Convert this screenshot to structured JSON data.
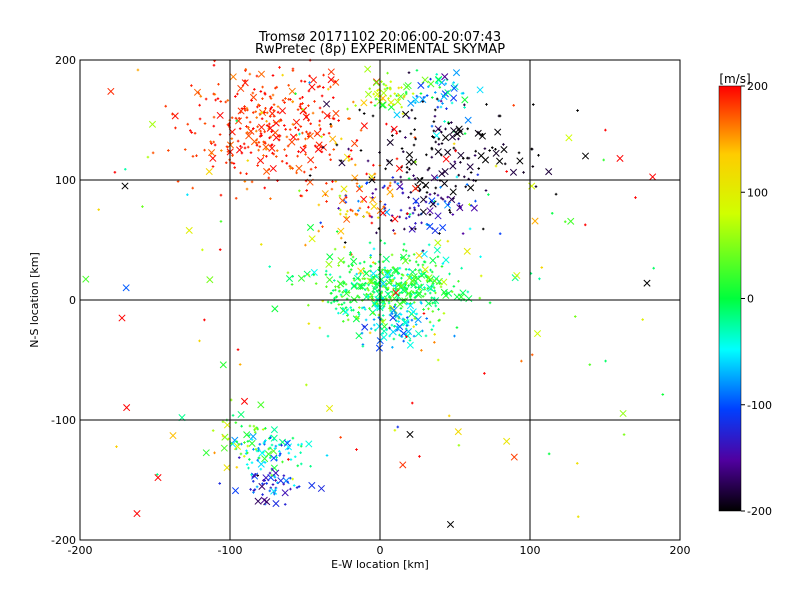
{
  "chart_data": {
    "type": "scatter",
    "title": "Tromsø 20171102 20:06:00-20:07:43",
    "subtitle": "RwPretec (8p) EXPERIMENTAL SKYMAP",
    "xlabel": "E-W location [km]",
    "ylabel": "N-S location [km]",
    "xlim": [
      -200,
      200
    ],
    "ylim": [
      -200,
      200
    ],
    "x_ticks": [
      "-200",
      "-100",
      "0",
      "100",
      "200"
    ],
    "y_ticks": [
      "-200",
      "-100",
      "0",
      "100",
      "200"
    ],
    "grid": true,
    "markers": [
      "cross",
      "x"
    ],
    "colorbar": {
      "label": "[m/s]",
      "range": [
        -200,
        200
      ],
      "ticks": [
        "200",
        "100",
        "0",
        "-100",
        "-200"
      ],
      "colormap": "rainbow (black - purple - blue - cyan - green - yellow - red)"
    },
    "clusters": [
      {
        "x": -75,
        "y": 145,
        "sx": 30,
        "sy": 25,
        "n": 340,
        "v": 185,
        "sv": 15
      },
      {
        "x": 5,
        "y": 172,
        "sx": 10,
        "sy": 8,
        "n": 50,
        "v": 70,
        "sv": 40
      },
      {
        "x": 38,
        "y": 172,
        "sx": 14,
        "sy": 12,
        "n": 60,
        "v": -60,
        "sv": 50
      },
      {
        "x": 45,
        "y": 120,
        "sx": 35,
        "sy": 20,
        "n": 140,
        "v": -195,
        "sv": 15
      },
      {
        "x": 25,
        "y": 80,
        "sx": 22,
        "sy": 15,
        "n": 110,
        "v": -150,
        "sv": 50
      },
      {
        "x": -15,
        "y": 85,
        "sx": 15,
        "sy": 25,
        "n": 70,
        "v": 160,
        "sv": 40
      },
      {
        "x": 5,
        "y": 10,
        "sx": 25,
        "sy": 15,
        "n": 460,
        "v": 5,
        "sv": 30
      },
      {
        "x": 10,
        "y": -20,
        "sx": 12,
        "sy": 10,
        "n": 70,
        "v": -70,
        "sv": 40
      },
      {
        "x": -75,
        "y": -125,
        "sx": 12,
        "sy": 8,
        "n": 75,
        "v": -40,
        "sv": 40
      },
      {
        "x": -70,
        "y": -155,
        "sx": 12,
        "sy": 8,
        "n": 55,
        "v": -120,
        "sv": 30
      },
      {
        "x": -90,
        "y": -115,
        "sx": 10,
        "sy": 15,
        "n": 40,
        "v": 40,
        "sv": 40
      },
      {
        "x": 0,
        "y": 40,
        "sx": 110,
        "sy": 110,
        "n": 160,
        "v": 120,
        "sv": 100
      }
    ],
    "notable_points": [
      {
        "x": -170,
        "y": 95,
        "v": -200
      },
      {
        "x": 178,
        "y": 14,
        "v": -200
      },
      {
        "x": -172,
        "y": -15,
        "v": 200
      },
      {
        "x": 160,
        "y": 118,
        "v": 200
      },
      {
        "x": 137,
        "y": 120,
        "v": -200
      },
      {
        "x": -132,
        "y": -98,
        "v": -20
      },
      {
        "x": -138,
        "y": -113,
        "v": 140
      },
      {
        "x": -148,
        "y": -148,
        "v": 200
      },
      {
        "x": -162,
        "y": -178,
        "v": 200
      },
      {
        "x": 20,
        "y": -112,
        "v": -200
      },
      {
        "x": 47,
        "y": -187,
        "v": -200
      },
      {
        "x": 105,
        "y": -28,
        "v": 80
      }
    ]
  }
}
